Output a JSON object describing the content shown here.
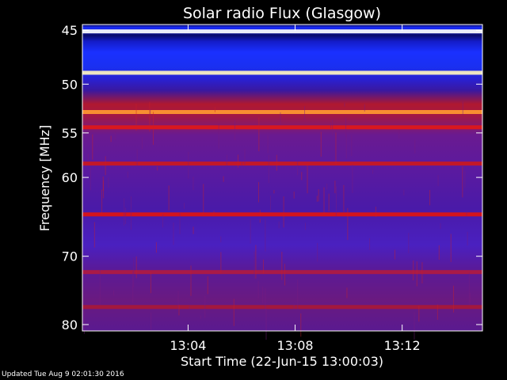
{
  "chart_data": {
    "type": "heatmap",
    "title": "Solar radio Flux (Glasgow)",
    "xlabel": "Start Time (22-Jun-15 13:00:03)",
    "ylabel": "Frequency [MHz]",
    "x_ticks": [
      "13:04",
      "13:08",
      "13:12"
    ],
    "x_tick_minutes": [
      4,
      8,
      12
    ],
    "xlim_minutes": [
      0.05,
      15.0
    ],
    "y_ticks": [
      45,
      50,
      55,
      60,
      70,
      80
    ],
    "ylim": [
      44.5,
      81
    ],
    "y_scale": "log",
    "grid": false,
    "background": "#4b1aa0",
    "strong_bands": [
      {
        "freq": 45.1,
        "color": "#ffffff"
      },
      {
        "freq": 48.9,
        "color": "#fff4c0"
      },
      {
        "freq": 52.8,
        "color": "#ff9a30"
      },
      {
        "freq": 54.4,
        "color": "#e01818"
      },
      {
        "freq": 58.4,
        "color": "#cc1820"
      },
      {
        "freq": 64.5,
        "color": "#e01410"
      },
      {
        "freq": 72.2,
        "color": "#b01a40"
      },
      {
        "freq": 77.3,
        "color": "#a81838"
      }
    ]
  },
  "footer": "Updated Tue Aug  9 02:01:30 2016"
}
